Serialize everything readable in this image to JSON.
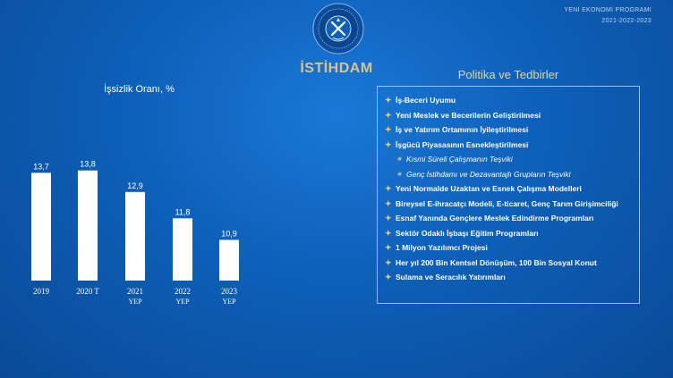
{
  "header": {
    "program_line1": "YENİ EKONOMİ PROGRAMI",
    "program_line2": "2021-2022-2023",
    "section_title": "İSTİHDAM"
  },
  "colors": {
    "accent": "#d9c38a",
    "bar": "#ffffff",
    "background": "#0d5fb8"
  },
  "chart_data": {
    "type": "bar",
    "title": "İşsizlik Oranı, %",
    "categories": [
      {
        "line1": "2019",
        "line2": ""
      },
      {
        "line1": "2020 T",
        "line2": ""
      },
      {
        "line1": "2021",
        "line2": "YEP"
      },
      {
        "line1": "2022",
        "line2": "YEP"
      },
      {
        "line1": "2023",
        "line2": "YEP"
      }
    ],
    "values": [
      13.7,
      13.8,
      12.9,
      11.8,
      10.9
    ],
    "labels": [
      "13,7",
      "13,8",
      "12,9",
      "11,8",
      "10,9"
    ],
    "ylim": [
      9.2,
      14.2
    ]
  },
  "policies": {
    "title": "Politika ve Tedbirler",
    "items": [
      {
        "text": "İş-Beceri Uyumu",
        "sub": false
      },
      {
        "text": "Yeni Meslek ve Becerilerin Geliştirilmesi",
        "sub": false
      },
      {
        "text": "İş ve Yatırım Ortamının İyileştirilmesi",
        "sub": false
      },
      {
        "text": "İşgücü Piyasasının Esnekleştirilmesi",
        "sub": false
      },
      {
        "text": "Kısmi Süreli Çalışmanın Teşviki",
        "sub": true
      },
      {
        "text": "Genç İstihdamı ve Dezavantajlı Grupların Teşviki",
        "sub": true
      },
      {
        "text": "Yeni Normalde Uzaktan ve Esnek Çalışma Modelleri",
        "sub": false
      },
      {
        "text": "Bireysel E-ihracatçı Modeli, E-ticaret, Genç Tarım Girişimciliği",
        "sub": false
      },
      {
        "text": "Esnaf Yanında Gençlere Meslek Edindirme Programları",
        "sub": false
      },
      {
        "text": "Sektör Odaklı İşbaşı Eğitim Programları",
        "sub": false
      },
      {
        "text": "1 Milyon Yazılımcı Projesi",
        "sub": false
      },
      {
        "text": "Her yıl 200 Bin Kentsel Dönüşüm, 100 Bin Sosyal Konut",
        "sub": false
      },
      {
        "text": "Sulama ve Seracılık Yatırımları",
        "sub": false
      }
    ]
  }
}
